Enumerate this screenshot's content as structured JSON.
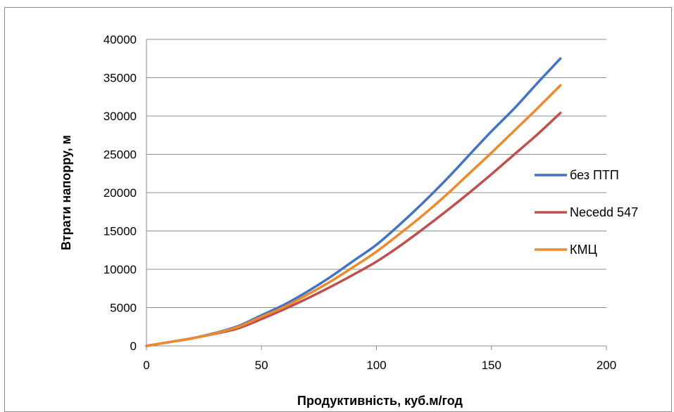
{
  "chart_data": {
    "type": "line",
    "xlabel": "Продуктивність, куб.м/год",
    "ylabel": "Втрати напорру, м",
    "xlim": [
      0,
      200
    ],
    "ylim": [
      0,
      40000
    ],
    "x_ticks": [
      0,
      50,
      100,
      150,
      200
    ],
    "y_ticks": [
      0,
      5000,
      10000,
      15000,
      20000,
      25000,
      30000,
      35000,
      40000
    ],
    "grid": "horizontal",
    "legend_position": "right",
    "series": [
      {
        "name": "без ПТП",
        "color": "#4472C4",
        "x": [
          0,
          10,
          20,
          30,
          40,
          50,
          60,
          70,
          80,
          90,
          100,
          110,
          120,
          130,
          140,
          150,
          160,
          170,
          180
        ],
        "values": [
          0,
          500,
          1000,
          1700,
          2600,
          4000,
          5400,
          7100,
          9000,
          11100,
          13200,
          15800,
          18600,
          21600,
          24800,
          28000,
          31000,
          34300,
          37500
        ]
      },
      {
        "name": "Necedd 547",
        "color": "#C0504D",
        "x": [
          0,
          10,
          20,
          30,
          40,
          50,
          60,
          70,
          80,
          90,
          100,
          110,
          120,
          130,
          140,
          150,
          160,
          170,
          180
        ],
        "values": [
          0,
          500,
          1000,
          1600,
          2300,
          3500,
          4800,
          6200,
          7700,
          9300,
          11000,
          13000,
          15200,
          17500,
          19900,
          22400,
          25000,
          27600,
          30400
        ]
      },
      {
        "name": "КМЦ",
        "color": "#ED8A2D",
        "x": [
          0,
          10,
          20,
          30,
          40,
          50,
          60,
          70,
          80,
          90,
          100,
          110,
          120,
          130,
          140,
          150,
          160,
          170,
          180
        ],
        "values": [
          0,
          500,
          1000,
          1650,
          2500,
          3800,
          5100,
          6700,
          8400,
          10300,
          12300,
          14600,
          17000,
          19600,
          22400,
          25200,
          28100,
          31000,
          34000
        ]
      }
    ]
  }
}
